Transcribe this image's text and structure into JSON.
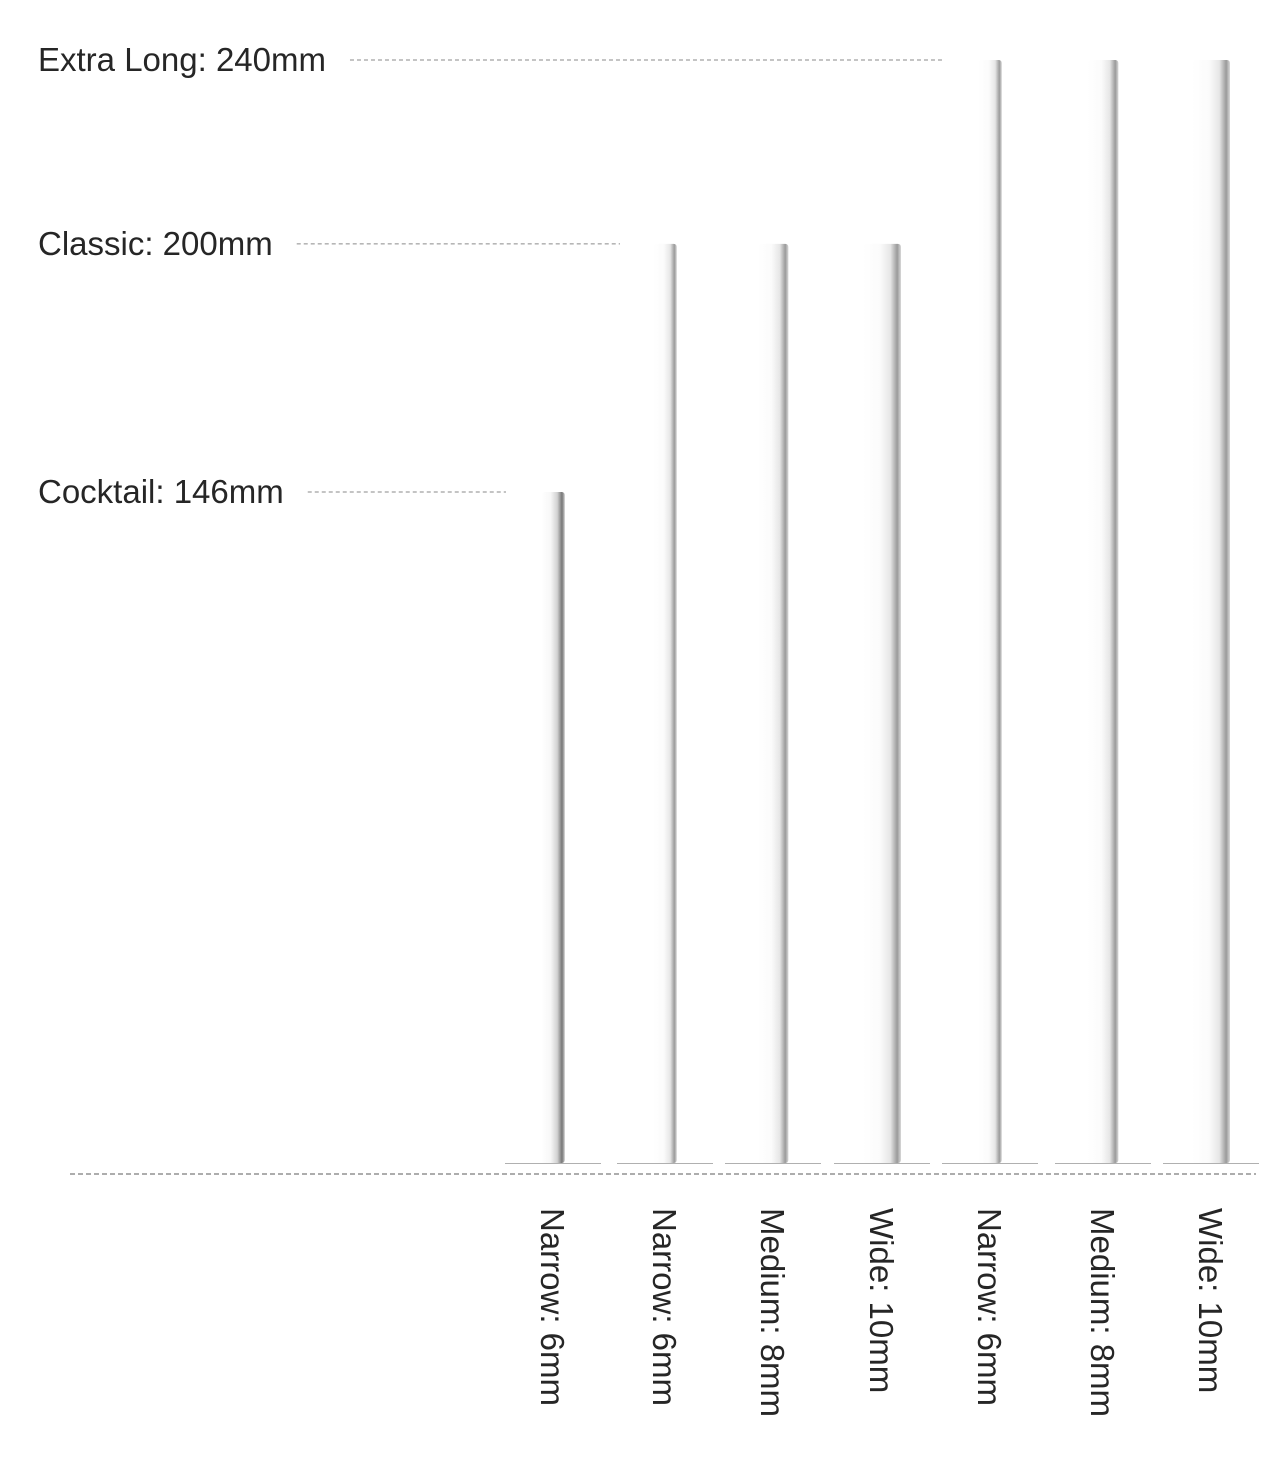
{
  "length_levels": [
    {
      "label": "Extra Long: 240mm",
      "length_mm": 240
    },
    {
      "label": "Classic: 200mm",
      "length_mm": 200
    },
    {
      "label": "Cocktail: 146mm",
      "length_mm": 146
    }
  ],
  "straws": [
    {
      "label": "Narrow: 6mm",
      "length_mm": 146,
      "width_mm": 6
    },
    {
      "label": "Narrow: 6mm",
      "length_mm": 200,
      "width_mm": 6
    },
    {
      "label": "Medium: 8mm",
      "length_mm": 200,
      "width_mm": 8
    },
    {
      "label": "Wide: 10mm",
      "length_mm": 200,
      "width_mm": 10
    },
    {
      "label": "Narrow: 6mm",
      "length_mm": 240,
      "width_mm": 6
    },
    {
      "label": "Medium: 8mm",
      "length_mm": 240,
      "width_mm": 8
    },
    {
      "label": "Wide: 10mm",
      "length_mm": 240,
      "width_mm": 10
    }
  ],
  "colors": {
    "text": "#262626",
    "guide_line": "#8a8a8a",
    "straw_body": "#ffffff",
    "straw_shadow": "#7a7a7a"
  }
}
